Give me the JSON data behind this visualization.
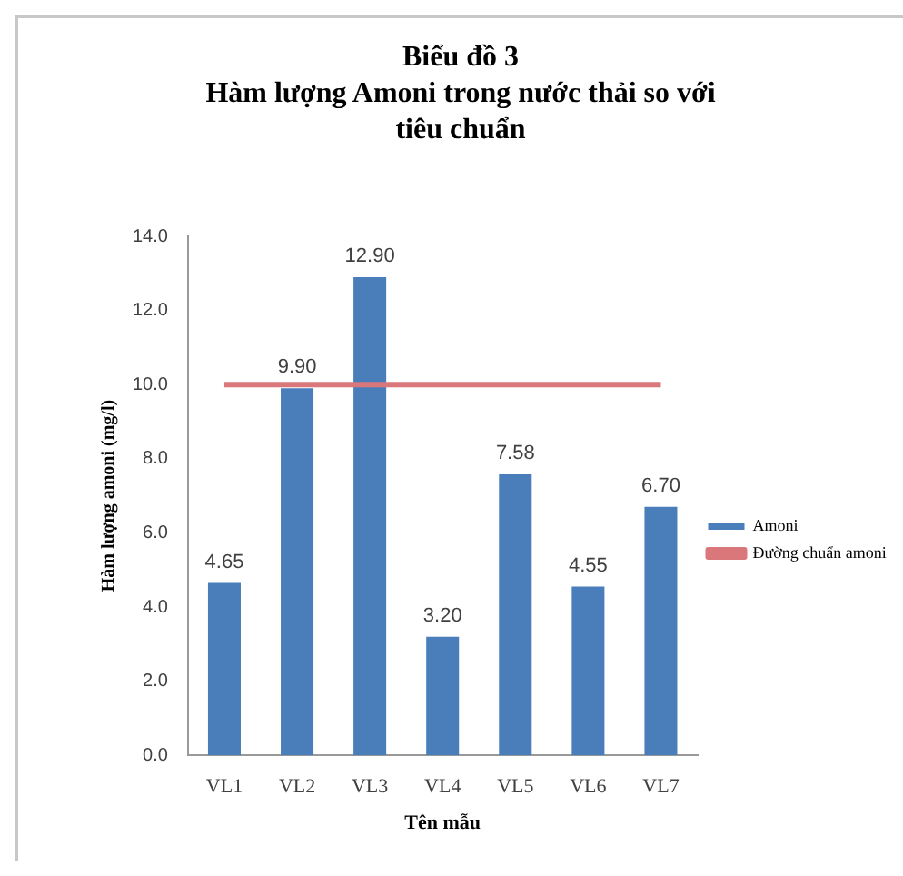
{
  "chart_data": {
    "type": "bar",
    "title": "Biểu đồ 3\nHàm lượng Amoni trong nước thải so với\ntiêu chuẩn",
    "xlabel": "Tên mẫu",
    "ylabel": "Hàm lượng amoni (mg/l)",
    "categories": [
      "VL1",
      "VL2",
      "VL3",
      "VL4",
      "VL5",
      "VL6",
      "VL7"
    ],
    "series": [
      {
        "name": "Amoni",
        "color": "#4a7ebb",
        "values": [
          4.65,
          9.9,
          12.9,
          3.2,
          7.58,
          4.55,
          6.7
        ],
        "value_labels": [
          "4.65",
          "9.90",
          "12.90",
          "3.20",
          "7.58",
          "4.55",
          "6.70"
        ]
      },
      {
        "name": "Đường chuẩn amoni",
        "type": "line",
        "color": "#d9777a",
        "values": [
          10,
          10,
          10,
          10,
          10,
          10,
          10
        ],
        "marker": "none"
      }
    ],
    "ylim": [
      0,
      14
    ],
    "yticks": [
      {
        "value": 0,
        "label": "0.0"
      },
      {
        "value": 2,
        "label": "2.0"
      },
      {
        "value": 4,
        "label": "4.0"
      },
      {
        "value": 6,
        "label": "6.0"
      },
      {
        "value": 8,
        "label": "8.0"
      },
      {
        "value": 10,
        "label": "10.0"
      },
      {
        "value": 12,
        "label": "12.0"
      },
      {
        "value": 14,
        "label": "14.0"
      }
    ],
    "grid": false,
    "legend": "right"
  }
}
